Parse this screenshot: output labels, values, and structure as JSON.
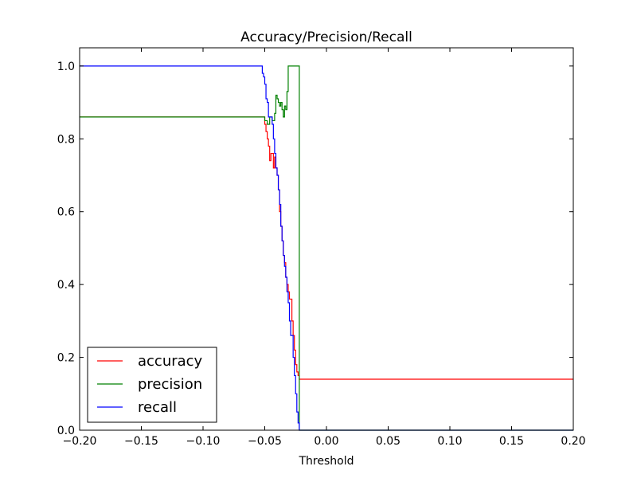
{
  "chart_data": {
    "type": "line",
    "title": "Accuracy/Precision/Recall",
    "xlabel": "Threshold",
    "ylabel": "",
    "xlim": [
      -0.2,
      0.2
    ],
    "ylim": [
      0.0,
      1.05
    ],
    "x_ticks": [
      "−0.20",
      "−0.15",
      "−0.10",
      "−0.05",
      "0.00",
      "0.05",
      "0.10",
      "0.15",
      "0.20"
    ],
    "x_tick_values": [
      -0.2,
      -0.15,
      -0.1,
      -0.05,
      0.0,
      0.05,
      0.1,
      0.15,
      0.2
    ],
    "y_ticks": [
      "0.0",
      "0.2",
      "0.4",
      "0.6",
      "0.8",
      "1.0"
    ],
    "y_tick_values": [
      0.0,
      0.2,
      0.4,
      0.6,
      0.8,
      1.0
    ],
    "legend_position": "lower-left",
    "series": [
      {
        "name": "accuracy",
        "color": "#ff0000",
        "x": [
          -0.2,
          -0.052,
          -0.05,
          -0.049,
          -0.048,
          -0.047,
          -0.046,
          -0.045,
          -0.044,
          -0.043,
          -0.042,
          -0.041,
          -0.04,
          -0.039,
          -0.038,
          -0.037,
          -0.036,
          -0.035,
          -0.034,
          -0.033,
          -0.032,
          -0.031,
          -0.03,
          -0.029,
          -0.028,
          -0.027,
          -0.026,
          -0.025,
          -0.024,
          -0.023,
          -0.022,
          0.2
        ],
        "y": [
          0.86,
          0.86,
          0.84,
          0.82,
          0.8,
          0.78,
          0.74,
          0.76,
          0.76,
          0.72,
          0.75,
          0.72,
          0.7,
          0.66,
          0.6,
          0.56,
          0.52,
          0.48,
          0.46,
          0.42,
          0.4,
          0.38,
          0.36,
          0.36,
          0.3,
          0.26,
          0.22,
          0.18,
          0.16,
          0.15,
          0.14,
          0.14
        ]
      },
      {
        "name": "precision",
        "color": "#008000",
        "x": [
          -0.2,
          -0.052,
          -0.05,
          -0.048,
          -0.046,
          -0.044,
          -0.042,
          -0.041,
          -0.04,
          -0.039,
          -0.038,
          -0.037,
          -0.036,
          -0.035,
          -0.034,
          -0.033,
          -0.032,
          -0.031,
          -0.03,
          -0.029,
          -0.028,
          -0.027,
          -0.026,
          -0.025,
          -0.024,
          -0.023,
          -0.022,
          0.2
        ],
        "y": [
          0.86,
          0.86,
          0.85,
          0.84,
          0.86,
          0.85,
          0.87,
          0.92,
          0.91,
          0.9,
          0.89,
          0.9,
          0.88,
          0.86,
          0.89,
          0.88,
          0.93,
          1.0,
          1.0,
          1.0,
          1.0,
          1.0,
          1.0,
          1.0,
          1.0,
          1.0,
          0.0,
          0.0
        ]
      },
      {
        "name": "recall",
        "color": "#0000ff",
        "x": [
          -0.2,
          -0.053,
          -0.052,
          -0.051,
          -0.05,
          -0.049,
          -0.048,
          -0.047,
          -0.046,
          -0.045,
          -0.044,
          -0.043,
          -0.042,
          -0.041,
          -0.04,
          -0.039,
          -0.038,
          -0.037,
          -0.036,
          -0.035,
          -0.034,
          -0.033,
          -0.032,
          -0.031,
          -0.03,
          -0.029,
          -0.028,
          -0.027,
          -0.026,
          -0.025,
          -0.024,
          -0.023,
          -0.022,
          0.2
        ],
        "y": [
          1.0,
          1.0,
          0.98,
          0.97,
          0.95,
          0.91,
          0.9,
          0.86,
          0.86,
          0.86,
          0.84,
          0.8,
          0.76,
          0.72,
          0.7,
          0.66,
          0.62,
          0.56,
          0.52,
          0.48,
          0.45,
          0.42,
          0.38,
          0.35,
          0.3,
          0.26,
          0.26,
          0.2,
          0.15,
          0.1,
          0.05,
          0.02,
          0.0,
          0.0
        ]
      }
    ]
  }
}
